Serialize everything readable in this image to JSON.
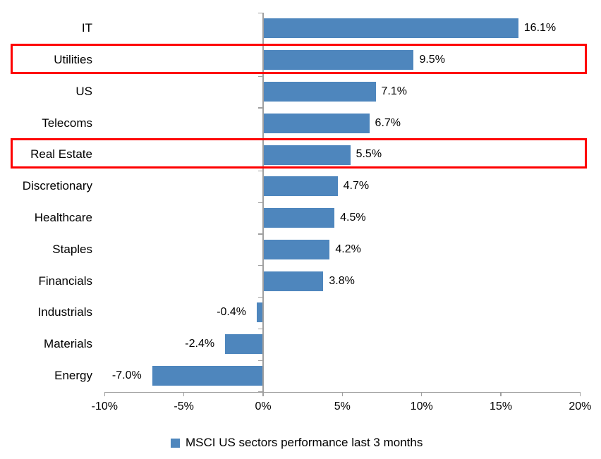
{
  "chart_data": {
    "type": "bar",
    "orientation": "horizontal",
    "title": "",
    "xlabel": "",
    "ylabel": "",
    "categories": [
      "IT",
      "Utilities",
      "US",
      "Telecoms",
      "Real Estate",
      "Discretionary",
      "Healthcare",
      "Staples",
      "Financials",
      "Industrials",
      "Materials",
      "Energy"
    ],
    "values": [
      16.1,
      9.5,
      7.1,
      6.7,
      5.5,
      4.7,
      4.5,
      4.2,
      3.8,
      -0.4,
      -2.4,
      -7.0
    ],
    "value_labels": [
      "16.1%",
      "9.5%",
      "7.1%",
      "6.7%",
      "5.5%",
      "4.7%",
      "4.5%",
      "4.2%",
      "3.8%",
      "-0.4%",
      "-2.4%",
      "-7.0%"
    ],
    "xlim": [
      -10,
      20
    ],
    "x_ticks": [
      {
        "value": -10,
        "label": "-10%"
      },
      {
        "value": -5,
        "label": "-5%"
      },
      {
        "value": 0,
        "label": "0%"
      },
      {
        "value": 5,
        "label": "5%"
      },
      {
        "value": 10,
        "label": "10%"
      },
      {
        "value": 15,
        "label": "15%"
      },
      {
        "value": 20,
        "label": "20%"
      }
    ],
    "grid": false,
    "legend_position": "bottom",
    "series": [
      {
        "name": "MSCI US sectors performance last 3 months",
        "values": [
          16.1,
          9.5,
          7.1,
          6.7,
          5.5,
          4.7,
          4.5,
          4.2,
          3.8,
          -0.4,
          -2.4,
          -7.0
        ]
      }
    ],
    "highlighted_categories": [
      "Utilities",
      "Real Estate"
    ],
    "colors": {
      "bar": "#4e86bd",
      "highlight_border": "#fe0000",
      "axis": "#a0a0a0",
      "text": "#000000",
      "background": "#ffffff"
    }
  },
  "legend": {
    "label": "MSCI US sectors performance last 3 months"
  }
}
